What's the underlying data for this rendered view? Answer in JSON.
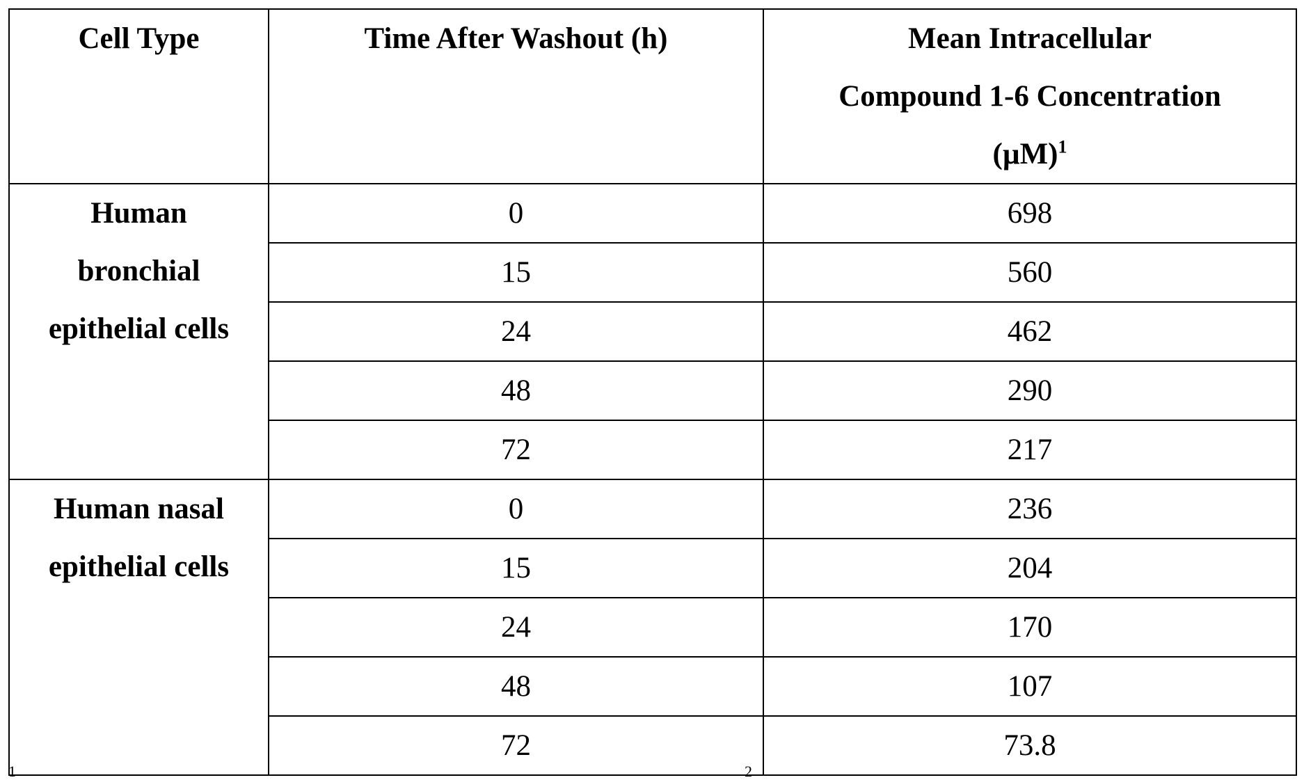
{
  "table": {
    "headers": {
      "cell_type": "Cell Type",
      "time": "Time After Washout (h)",
      "concentration_line1": "Mean Intracellular",
      "concentration_line2": "Compound 1-6 Concentration",
      "concentration_line3": "(µM)",
      "concentration_sup": "1"
    },
    "groups": [
      {
        "cell_type_lines": [
          "Human",
          "bronchial",
          "epithelial cells"
        ],
        "rows": [
          {
            "time": "0",
            "concentration": "698"
          },
          {
            "time": "15",
            "concentration": "560"
          },
          {
            "time": "24",
            "concentration": "462"
          },
          {
            "time": "48",
            "concentration": "290"
          },
          {
            "time": "72",
            "concentration": "217"
          }
        ]
      },
      {
        "cell_type_lines": [
          "Human nasal",
          "epithelial cells"
        ],
        "rows": [
          {
            "time": "0",
            "concentration": "236"
          },
          {
            "time": "15",
            "concentration": "204"
          },
          {
            "time": "24",
            "concentration": "170"
          },
          {
            "time": "48",
            "concentration": "107"
          },
          {
            "time": "72",
            "concentration": "73.8"
          }
        ]
      }
    ]
  },
  "footnote_marks": {
    "left": "1",
    "middle": "2"
  }
}
